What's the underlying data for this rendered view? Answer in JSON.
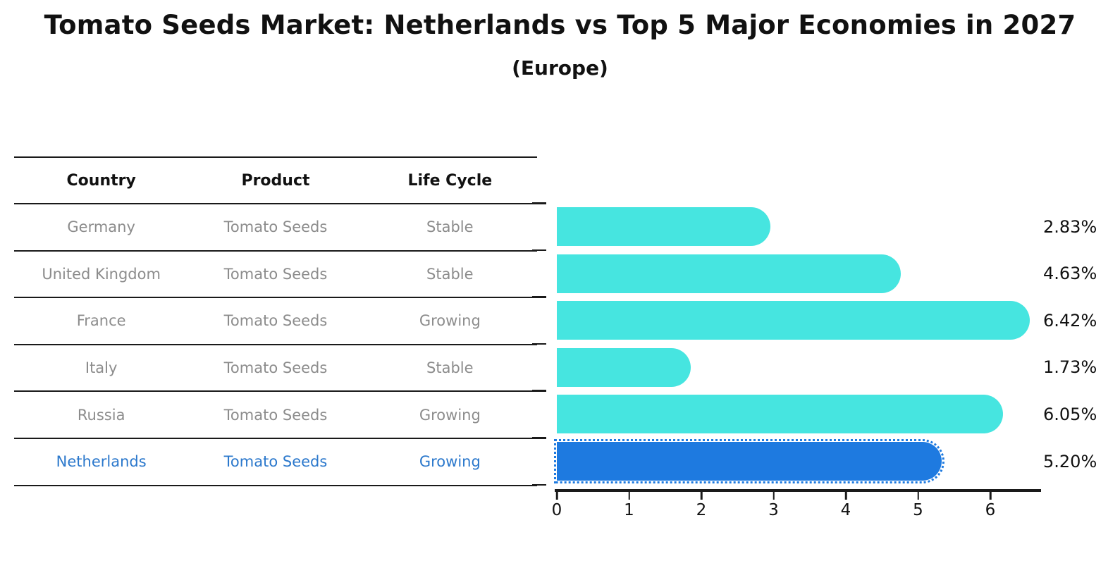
{
  "title": "Tomato Seeds Market: Netherlands vs Top 5 Major Economies in 2027",
  "subtitle": "(Europe)",
  "table": {
    "headers": {
      "country": "Country",
      "product": "Product",
      "life_cycle": "Life Cycle"
    },
    "rows": [
      {
        "country": "Germany",
        "product": "Tomato Seeds",
        "life_cycle": "Stable"
      },
      {
        "country": "United Kingdom",
        "product": "Tomato Seeds",
        "life_cycle": "Stable"
      },
      {
        "country": "France",
        "product": "Tomato Seeds",
        "life_cycle": "Growing"
      },
      {
        "country": "Italy",
        "product": "Tomato Seeds",
        "life_cycle": "Stable"
      },
      {
        "country": "Russia",
        "product": "Tomato Seeds",
        "life_cycle": "Growing"
      },
      {
        "country": "Netherlands",
        "product": "Tomato Seeds",
        "life_cycle": "Growing"
      }
    ]
  },
  "chart_data": {
    "type": "bar",
    "orientation": "horizontal",
    "title": "Tomato Seeds Market: Netherlands vs Top 5 Major Economies in 2027 (Europe)",
    "categories": [
      "Germany",
      "United Kingdom",
      "France",
      "Italy",
      "Russia",
      "Netherlands"
    ],
    "values": [
      2.83,
      4.63,
      6.42,
      1.73,
      6.05,
      5.2
    ],
    "value_labels": [
      "2.83%",
      "4.63%",
      "6.42%",
      "1.73%",
      "6.05%",
      "5.20%"
    ],
    "value_unit": "%",
    "x_ticks": [
      "0",
      "1",
      "2",
      "3",
      "4",
      "5",
      "6"
    ],
    "xlim": [
      0,
      6.8
    ],
    "grid": false,
    "legend": false,
    "highlight_index": 5,
    "bar_color": "#46e5e0",
    "highlight_bar_color": "#1e7ae0",
    "highlight_text_color": "#2b78cc"
  },
  "colors": {
    "text": "#111111",
    "muted_text": "#8c8c8c",
    "line": "#1a1a1a",
    "background": "#ffffff"
  }
}
